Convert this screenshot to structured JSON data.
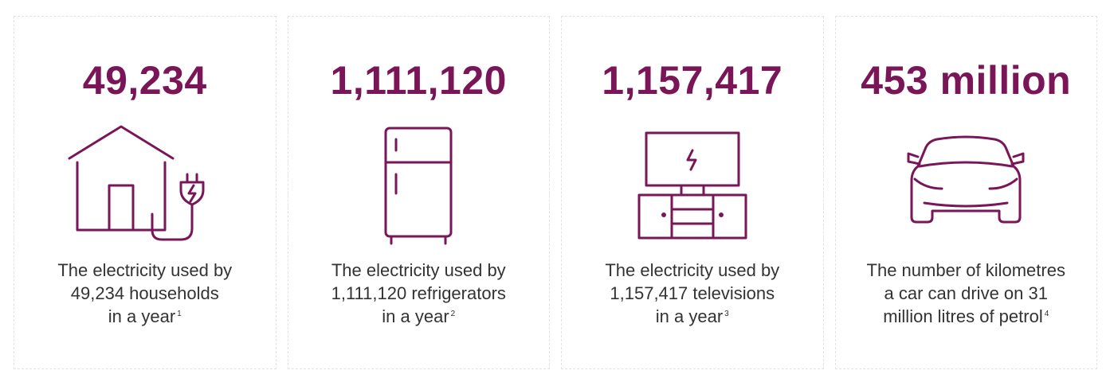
{
  "colors": {
    "accent": "#7a1658",
    "text": "#333333",
    "card_border": "#e2e2e2"
  },
  "cards": [
    {
      "value": "49,234",
      "icon": "house-plug-icon",
      "caption_lines": [
        "The electricity used by",
        "49,234 households",
        "in a year"
      ],
      "footnote": "1"
    },
    {
      "value": "1,111,120",
      "icon": "refrigerator-icon",
      "caption_lines": [
        "The electricity used by",
        "1,111,120 refrigerators",
        "in a year"
      ],
      "footnote": "2"
    },
    {
      "value": "1,157,417",
      "icon": "television-icon",
      "caption_lines": [
        "The electricity used by",
        "1,157,417 televisions",
        "in a year"
      ],
      "footnote": "3"
    },
    {
      "value": "453 million",
      "icon": "car-icon",
      "caption_lines": [
        "The number of kilometres",
        "a car can drive on 31",
        "million litres of petrol"
      ],
      "footnote": "4"
    }
  ]
}
